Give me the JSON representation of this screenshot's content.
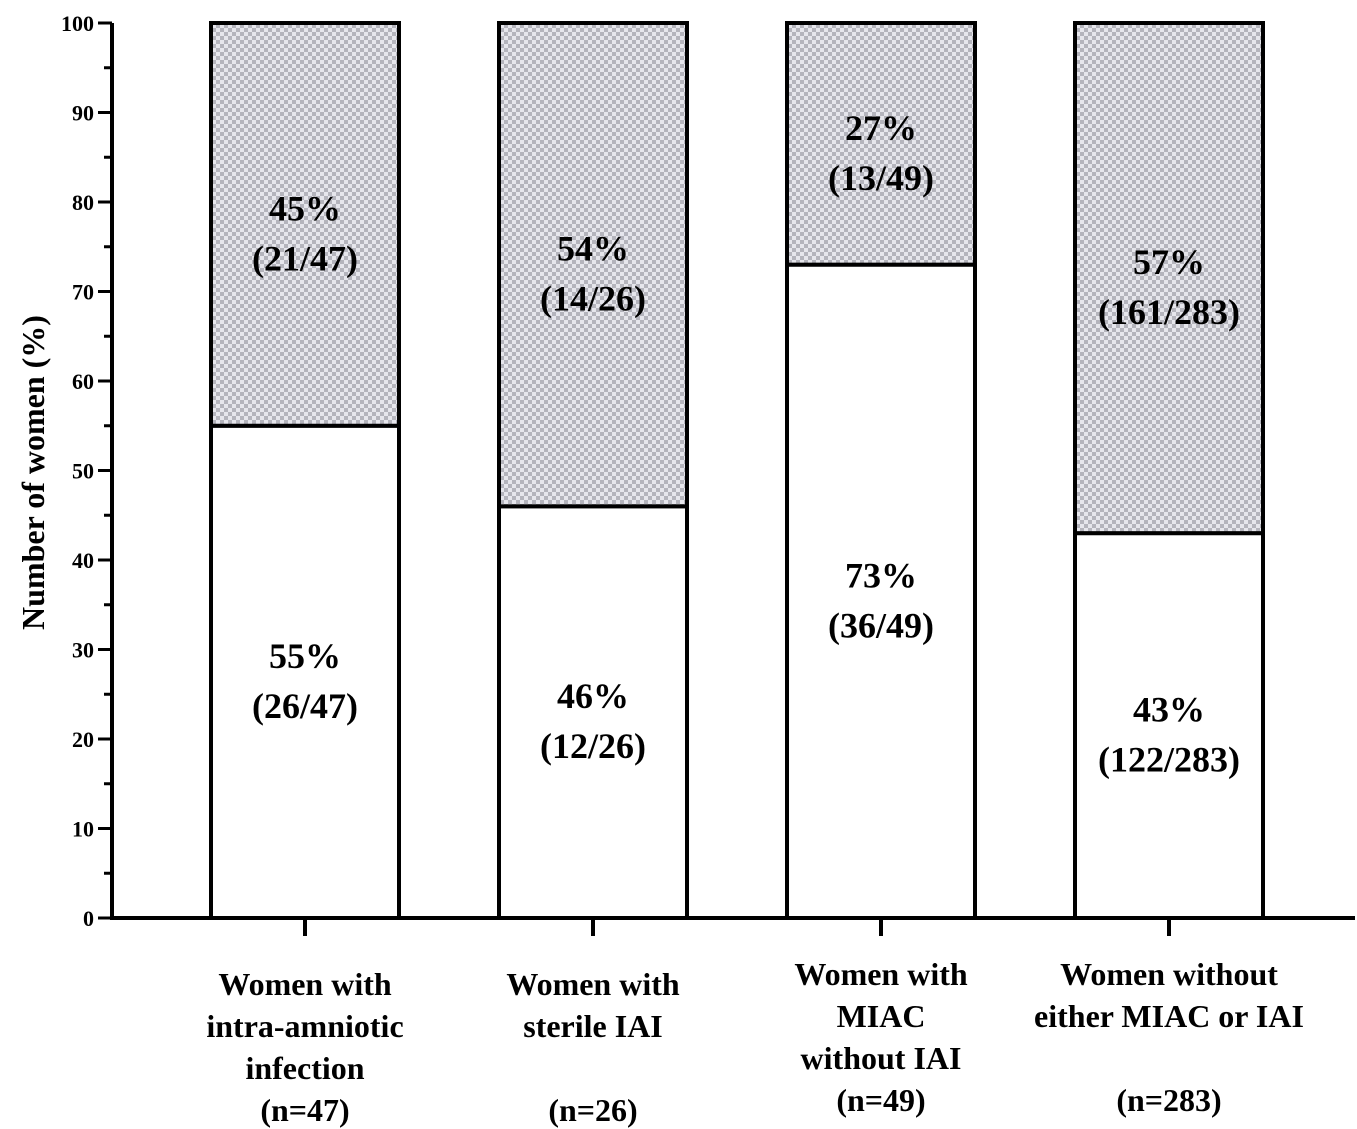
{
  "chart_data": {
    "type": "bar",
    "stacked": true,
    "ylabel": "Number of women (%)",
    "ylim": [
      0,
      100
    ],
    "yticks": [
      0,
      10,
      20,
      30,
      40,
      50,
      60,
      70,
      80,
      90,
      100
    ],
    "grid": false,
    "categories": [
      {
        "lines": [
          "Women with",
          "intra-amniotic",
          "infection",
          "(n=47)"
        ]
      },
      {
        "lines": [
          "Women with",
          "sterile IAI",
          "",
          "(n=26)"
        ]
      },
      {
        "lines": [
          "Women with",
          "MIAC",
          "without IAI",
          "(n=49)"
        ]
      },
      {
        "lines": [
          "Women without",
          "either MIAC or IAI",
          "",
          "(n=283)"
        ]
      }
    ],
    "series": [
      {
        "fill": "#ffffff",
        "values": [
          55,
          46,
          73,
          43
        ],
        "labels": [
          {
            "pct": "55%",
            "frac": "(26/47)"
          },
          {
            "pct": "46%",
            "frac": "(12/26)"
          },
          {
            "pct": "73%",
            "frac": "(36/49)"
          },
          {
            "pct": "43%",
            "frac": "(122/283)"
          }
        ]
      },
      {
        "fill": "checkered-grey",
        "values": [
          45,
          54,
          27,
          57
        ],
        "labels": [
          {
            "pct": "45%",
            "frac": "(21/47)"
          },
          {
            "pct": "54%",
            "frac": "(14/26)"
          },
          {
            "pct": "27%",
            "frac": "(13/49)"
          },
          {
            "pct": "57%",
            "frac": "(161/283)"
          }
        ]
      }
    ]
  }
}
